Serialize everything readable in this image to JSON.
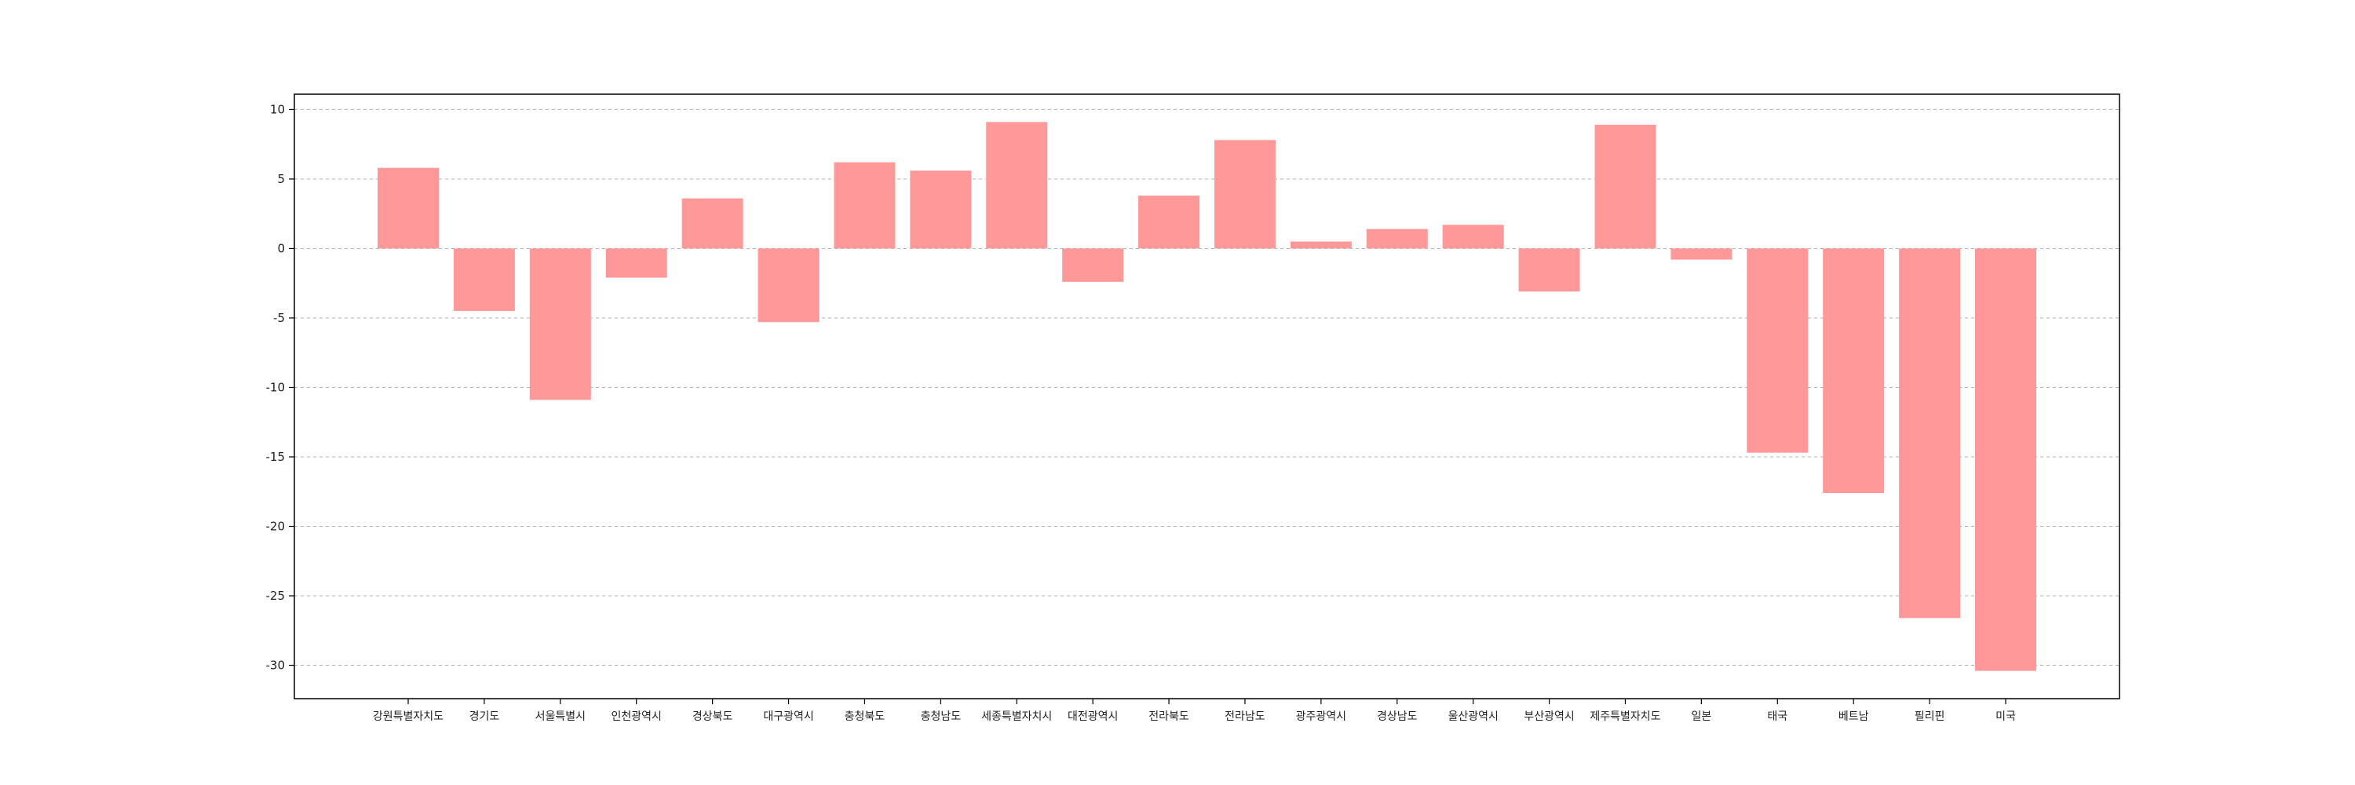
{
  "chart_data": {
    "type": "bar",
    "categories": [
      "강원특별자치도",
      "경기도",
      "서울특별시",
      "인천광역시",
      "경상북도",
      "대구광역시",
      "충청북도",
      "충청남도",
      "세종특별자치시",
      "대전광역시",
      "전라북도",
      "전라남도",
      "광주광역시",
      "경상남도",
      "울산광역시",
      "부산광역시",
      "제주특별자치도",
      "일본",
      "태국",
      "베트남",
      "필리핀",
      "미국"
    ],
    "values": [
      5.8,
      -4.5,
      -10.9,
      -2.1,
      3.6,
      -5.3,
      6.2,
      5.6,
      9.1,
      -2.4,
      3.8,
      7.8,
      0.5,
      1.4,
      1.7,
      -3.1,
      8.9,
      -0.8,
      -14.7,
      -17.6,
      -26.6,
      -30.4
    ],
    "yticks": [
      10,
      5,
      0,
      -5,
      -10,
      -15,
      -20,
      -25,
      -30
    ],
    "ylim": [
      -32.4,
      11.1
    ],
    "grid": "y-dashed",
    "bar_color": "#ff9999",
    "title": "",
    "xlabel": "",
    "ylabel": ""
  }
}
